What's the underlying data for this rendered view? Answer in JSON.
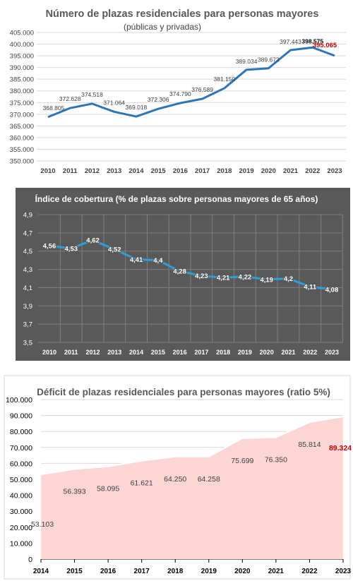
{
  "chart_data": [
    {
      "type": "line",
      "title": "Número de plazas residenciales para personas mayores",
      "subtitle": "(públicas y privadas)",
      "categories": [
        "2010",
        "2011",
        "2012",
        "2013",
        "2014",
        "2015",
        "2016",
        "2017",
        "2018",
        "2019",
        "2020",
        "2021",
        "2022",
        "2023"
      ],
      "values": [
        368805,
        372628,
        374518,
        371064,
        369018,
        372306,
        374790,
        376589,
        381150,
        389034,
        389673,
        397443,
        398575,
        395065
      ],
      "labels": [
        "368.805",
        "372.628",
        "374.518",
        "371.064",
        "369.018",
        "372.306",
        "374.790",
        "376.589",
        "381.150",
        "389.034",
        "389.673",
        "397.443",
        "398.575",
        "395.065"
      ],
      "yticks": [
        "350.000",
        "355.000",
        "360.000",
        "365.000",
        "370.000",
        "375.000",
        "380.000",
        "385.000",
        "390.000",
        "395.000",
        "400.000",
        "405.000"
      ],
      "ylim": [
        350000,
        405000
      ],
      "grid": true,
      "colors": {
        "line": "#2e75b6",
        "highlight_label": "#c00000",
        "bold_label": "#000000"
      }
    },
    {
      "type": "line",
      "title": "Índice de cobertura (% de plazas sobre personas mayores de 65 años)",
      "categories": [
        "2010",
        "2011",
        "2012",
        "2013",
        "2014",
        "2015",
        "2016",
        "2017",
        "2018",
        "2019",
        "2020",
        "2021",
        "2022",
        "2023"
      ],
      "values": [
        4.56,
        4.53,
        4.62,
        4.52,
        4.41,
        4.4,
        4.28,
        4.23,
        4.21,
        4.22,
        4.19,
        4.2,
        4.11,
        4.08
      ],
      "labels": [
        "4,56",
        "4,53",
        "4,62",
        "4,52",
        "4,41",
        "4,4",
        "4,28",
        "4,23",
        "4,21",
        "4,22",
        "4,19",
        "4,2",
        "4,11",
        "4,08"
      ],
      "yticks": [
        "3,5",
        "3,7",
        "3,9",
        "4,1",
        "4,3",
        "4,5",
        "4,7",
        "4,9"
      ],
      "ylim": [
        3.5,
        4.9
      ],
      "grid": true,
      "colors": {
        "background": "#595959",
        "line": "#2e9fd8",
        "text": "#ffffff"
      }
    },
    {
      "type": "area",
      "title": "Déficit de plazas residenciales para personas mayores (ratio 5%)",
      "categories": [
        "2014",
        "2015",
        "2016",
        "2017",
        "2018",
        "2019",
        "2020",
        "2021",
        "2022",
        "2023"
      ],
      "values": [
        53103,
        56393,
        58095,
        61621,
        64250,
        64258,
        75699,
        76350,
        85814,
        89324
      ],
      "labels": [
        "53.103",
        "56.393",
        "58.095",
        "61.621",
        "64.250",
        "64.258",
        "75.699",
        "76.350",
        "85.814",
        "89.324"
      ],
      "yticks": [
        "0",
        "10.000",
        "20.000",
        "30.000",
        "40.000",
        "50.000",
        "60.000",
        "70.000",
        "80.000",
        "90.000",
        "100.000"
      ],
      "ylim": [
        0,
        100000
      ],
      "grid": true,
      "colors": {
        "fill": "#fcd5d5",
        "edge": "#ffffff",
        "highlight_label": "#c00000"
      }
    }
  ]
}
